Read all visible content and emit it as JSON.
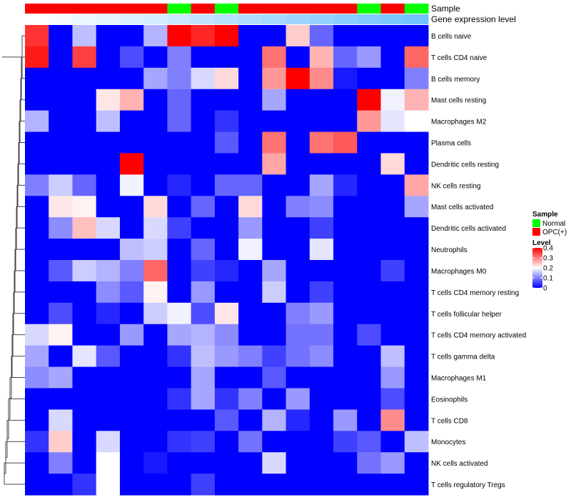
{
  "chart_data": {
    "type": "heatmap",
    "annotations": {
      "sample_label": "Sample",
      "expression_label": "Gene expression level"
    },
    "columns": [
      {
        "sample": "OPC(+)",
        "expression": 0.0
      },
      {
        "sample": "OPC(+)",
        "expression": 0.05
      },
      {
        "sample": "OPC(+)",
        "expression": 0.1
      },
      {
        "sample": "OPC(+)",
        "expression": 0.15
      },
      {
        "sample": "OPC(+)",
        "expression": 0.2
      },
      {
        "sample": "OPC(+)",
        "expression": 0.25
      },
      {
        "sample": "Normal",
        "expression": 0.3
      },
      {
        "sample": "OPC(+)",
        "expression": 0.35
      },
      {
        "sample": "Normal",
        "expression": 0.4
      },
      {
        "sample": "OPC(+)",
        "expression": 0.45
      },
      {
        "sample": "OPC(+)",
        "expression": 0.5
      },
      {
        "sample": "OPC(+)",
        "expression": 0.55
      },
      {
        "sample": "OPC(+)",
        "expression": 0.6
      },
      {
        "sample": "OPC(+)",
        "expression": 0.65
      },
      {
        "sample": "Normal",
        "expression": 0.7
      },
      {
        "sample": "OPC(+)",
        "expression": 0.75
      },
      {
        "sample": "Normal",
        "expression": 0.8
      }
    ],
    "rows": [
      {
        "label": "B cells naive",
        "values": [
          0.36,
          0.0,
          0.15,
          0.0,
          0.0,
          0.14,
          0.4,
          0.37,
          0.4,
          0.0,
          0.0,
          0.24,
          0.08,
          0.0,
          0.0,
          0.0,
          0.0
        ]
      },
      {
        "label": "T cells CD4 naive",
        "values": [
          0.38,
          0.0,
          0.35,
          0.0,
          0.06,
          0.0,
          0.1,
          0.0,
          0.0,
          0.0,
          0.31,
          0.0,
          0.26,
          0.08,
          0.12,
          0.0,
          0.32
        ]
      },
      {
        "label": "B cells memory",
        "values": [
          0.0,
          0.0,
          0.0,
          0.0,
          0.0,
          0.13,
          0.1,
          0.17,
          0.23,
          0.0,
          0.28,
          0.4,
          0.29,
          0.02,
          0.0,
          0.0,
          0.1
        ]
      },
      {
        "label": "Mast cells resting",
        "values": [
          0.0,
          0.0,
          0.0,
          0.22,
          0.26,
          0.0,
          0.08,
          0.0,
          0.0,
          0.0,
          0.13,
          0.0,
          0.0,
          0.0,
          0.4,
          0.19,
          0.26
        ]
      },
      {
        "label": "Macrophages M2",
        "values": [
          0.14,
          0.0,
          0.0,
          0.15,
          0.0,
          0.0,
          0.08,
          0.0,
          0.04,
          0.0,
          0.0,
          0.0,
          0.0,
          0.0,
          0.28,
          0.18,
          0.2
        ]
      },
      {
        "label": "Plasma cells",
        "values": [
          0.0,
          0.0,
          0.0,
          0.0,
          0.0,
          0.0,
          0.0,
          0.0,
          0.07,
          0.0,
          0.31,
          0.0,
          0.31,
          0.33,
          0.0,
          0.0,
          0.0
        ]
      },
      {
        "label": "Dendritic cells resting",
        "values": [
          0.0,
          0.0,
          0.0,
          0.0,
          0.4,
          0.0,
          0.0,
          0.0,
          0.0,
          0.0,
          0.27,
          0.0,
          0.0,
          0.0,
          0.0,
          0.23,
          0.0
        ]
      },
      {
        "label": "NK cells resting",
        "values": [
          0.1,
          0.16,
          0.08,
          0.0,
          0.19,
          0.0,
          0.03,
          0.0,
          0.08,
          0.08,
          0.0,
          0.0,
          0.13,
          0.03,
          0.0,
          0.0,
          0.27
        ]
      },
      {
        "label": "Mast cells activated",
        "values": [
          0.0,
          0.22,
          0.21,
          0.0,
          0.0,
          0.23,
          0.0,
          0.08,
          0.0,
          0.23,
          0.0,
          0.1,
          0.11,
          0.0,
          0.0,
          0.0,
          0.13
        ]
      },
      {
        "label": "Dendritic cells activated",
        "values": [
          0.0,
          0.11,
          0.25,
          0.17,
          0.0,
          0.17,
          0.05,
          0.0,
          0.0,
          0.12,
          0.0,
          0.0,
          0.05,
          0.0,
          0.0,
          0.0,
          0.0
        ]
      },
      {
        "label": "Neutrophils",
        "values": [
          0.0,
          0.0,
          0.0,
          0.0,
          0.15,
          0.16,
          0.0,
          0.08,
          0.0,
          0.19,
          0.0,
          0.0,
          0.18,
          0.0,
          0.0,
          0.0,
          0.0
        ]
      },
      {
        "label": "Macrophages M0",
        "values": [
          0.0,
          0.07,
          0.16,
          0.14,
          0.1,
          0.32,
          0.0,
          0.05,
          0.03,
          0.0,
          0.13,
          0.0,
          0.0,
          0.0,
          0.0,
          0.05,
          0.0
        ]
      },
      {
        "label": "T cells CD4 memory resting",
        "values": [
          0.0,
          0.0,
          0.0,
          0.11,
          0.07,
          0.21,
          0.0,
          0.12,
          0.0,
          0.0,
          0.16,
          0.0,
          0.05,
          0.0,
          0.0,
          0.0,
          0.0
        ]
      },
      {
        "label": "T cells follicular helper",
        "values": [
          0.0,
          0.06,
          0.0,
          0.03,
          0.0,
          0.16,
          0.19,
          0.06,
          0.22,
          0.0,
          0.0,
          0.1,
          0.12,
          0.0,
          0.0,
          0.0,
          0.0
        ]
      },
      {
        "label": "T cells CD4 memory activated",
        "values": [
          0.17,
          0.21,
          0.0,
          0.0,
          0.12,
          0.0,
          0.13,
          0.14,
          0.11,
          0.0,
          0.0,
          0.09,
          0.09,
          0.0,
          0.06,
          0.0,
          0.0
        ]
      },
      {
        "label": "T cells gamma delta",
        "values": [
          0.13,
          0.0,
          0.18,
          0.07,
          0.0,
          0.0,
          0.04,
          0.15,
          0.12,
          0.1,
          0.05,
          0.09,
          0.11,
          0.0,
          0.0,
          0.15,
          0.0
        ]
      },
      {
        "label": "Macrophages M1",
        "values": [
          0.11,
          0.13,
          0.0,
          0.0,
          0.0,
          0.0,
          0.0,
          0.13,
          0.0,
          0.0,
          0.07,
          0.0,
          0.0,
          0.0,
          0.0,
          0.12,
          0.0
        ]
      },
      {
        "label": "Eosinophils",
        "values": [
          0.0,
          0.0,
          0.0,
          0.0,
          0.0,
          0.0,
          0.04,
          0.13,
          0.04,
          0.1,
          0.0,
          0.12,
          0.0,
          0.0,
          0.0,
          0.06,
          0.0
        ]
      },
      {
        "label": "T cells CD8",
        "values": [
          0.0,
          0.17,
          0.0,
          0.0,
          0.0,
          0.0,
          0.0,
          0.0,
          0.07,
          0.0,
          0.14,
          0.03,
          0.0,
          0.12,
          0.0,
          0.29,
          0.0
        ]
      },
      {
        "label": "Monocytes",
        "values": [
          0.04,
          0.24,
          0.0,
          0.17,
          0.0,
          0.0,
          0.04,
          0.05,
          0.0,
          0.09,
          0.0,
          0.0,
          0.0,
          0.05,
          0.07,
          0.0,
          0.15
        ]
      },
      {
        "label": "NK cells activated",
        "values": [
          0.0,
          0.1,
          0.0,
          0.2,
          0.0,
          0.02,
          0.0,
          0.0,
          0.0,
          0.0,
          0.17,
          0.0,
          0.0,
          0.0,
          0.09,
          0.12,
          0.0
        ]
      },
      {
        "label": "T cells regulatory  Tregs",
        "values": [
          0.0,
          0.0,
          0.04,
          0.2,
          0.0,
          0.0,
          0.0,
          0.05,
          0.0,
          0.0,
          0.0,
          0.0,
          0.0,
          0.0,
          0.0,
          0.0,
          0.0
        ]
      }
    ],
    "color_scale": {
      "min": 0,
      "mid": 0.2,
      "max": 0.4,
      "low": "#0000ff",
      "midcolor": "#ffffff",
      "high": "#ff0000"
    },
    "legend": {
      "sample": {
        "title": "Sample",
        "entries": [
          {
            "label": "Normal",
            "color": "#00ff00"
          },
          {
            "label": "OPC(+)",
            "color": "#ff0000"
          }
        ]
      },
      "level": {
        "title": "Level",
        "ticks": [
          {
            "value": 0.4,
            "label": "0.4"
          },
          {
            "value": 0.3,
            "label": "0.3"
          },
          {
            "value": 0.2,
            "label": "0.2"
          },
          {
            "value": 0.1,
            "label": "0.1"
          },
          {
            "value": 0.0,
            "label": "0"
          }
        ]
      }
    },
    "expression_color": {
      "low": "#ffffff",
      "high": "#4db3ff"
    },
    "row_dendrogram": true
  }
}
